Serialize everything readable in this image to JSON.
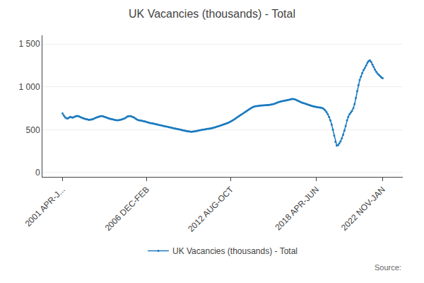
{
  "chart_data": {
    "type": "line",
    "title": "UK Vacancies (thousands) - Total",
    "annotations": [
      "Source:"
    ],
    "categories": [
      "2001 APR-J...",
      null,
      null,
      null,
      null,
      null,
      null,
      null,
      null,
      null,
      null,
      null,
      null,
      null,
      null,
      null,
      null,
      null,
      null,
      null,
      null,
      null,
      null,
      null,
      null,
      null,
      null,
      null,
      null,
      null,
      null,
      null,
      null,
      null,
      null,
      null,
      null,
      null,
      null,
      null,
      null,
      null,
      null,
      null,
      null,
      null,
      null,
      null,
      null,
      null,
      null,
      null,
      null,
      null,
      null,
      null,
      null,
      null,
      null,
      null,
      null,
      null,
      null,
      null,
      null,
      null,
      "2006 DEC-FEB",
      null,
      null,
      null,
      null,
      null,
      null,
      null,
      null,
      null,
      null,
      null,
      null,
      null,
      null,
      null,
      null,
      null,
      null,
      null,
      null,
      null,
      null,
      null,
      null,
      null,
      null,
      null,
      null,
      null,
      null,
      null,
      null,
      null,
      null,
      null,
      null,
      null,
      null,
      null,
      null,
      null,
      null,
      null,
      null,
      null,
      null,
      null,
      null,
      null,
      null,
      null,
      null,
      null,
      null,
      null,
      null,
      null,
      null,
      null,
      null,
      null,
      null,
      null,
      null,
      null,
      "2012 AUG-OCT",
      null,
      null,
      null,
      null,
      null,
      null,
      null,
      null,
      null,
      null,
      null,
      null,
      null,
      null,
      null,
      null,
      null,
      null,
      null,
      null,
      null,
      null,
      null,
      null,
      null,
      null,
      null,
      null,
      null,
      null,
      null,
      null,
      null,
      null,
      null,
      null,
      null,
      null,
      null,
      null,
      null,
      null,
      null,
      null,
      null,
      null,
      null,
      null,
      null,
      null,
      null,
      null,
      null,
      null,
      null,
      null,
      null,
      null,
      null,
      null,
      null,
      null,
      null,
      null,
      null,
      null,
      "2018 APR-JUN",
      null,
      null,
      null,
      null,
      null,
      null,
      null,
      null,
      null,
      null,
      null,
      null,
      null,
      null,
      null,
      null,
      null,
      null,
      null,
      null,
      null,
      null,
      null,
      null,
      null,
      null,
      null,
      null,
      null,
      null,
      null,
      null,
      null,
      null,
      null,
      null,
      null,
      null,
      null,
      null,
      null,
      null,
      null,
      null,
      null,
      null,
      null,
      null,
      null,
      null,
      null,
      "2022 NOV-JAN"
    ],
    "series": [
      {
        "name": "UK Vacancies (thousands) - Total",
        "color": "#1a7abf",
        "marker": "circle",
        "values": [
          690,
          665,
          645,
          635,
          630,
          640,
          650,
          645,
          640,
          650,
          655,
          660,
          660,
          655,
          648,
          640,
          635,
          630,
          625,
          622,
          618,
          615,
          618,
          620,
          625,
          632,
          638,
          645,
          650,
          655,
          658,
          660,
          655,
          650,
          645,
          638,
          632,
          628,
          625,
          622,
          618,
          615,
          612,
          610,
          612,
          615,
          618,
          622,
          628,
          635,
          645,
          655,
          658,
          660,
          655,
          650,
          642,
          632,
          622,
          615,
          610,
          608,
          605,
          602,
          598,
          595,
          590,
          585,
          582,
          578,
          575,
          572,
          568,
          565,
          562,
          558,
          555,
          552,
          548,
          545,
          542,
          538,
          535,
          532,
          528,
          525,
          522,
          518,
          515,
          512,
          508,
          505,
          502,
          498,
          495,
          492,
          488,
          485,
          482,
          480,
          478,
          476,
          478,
          480,
          482,
          485,
          488,
          492,
          495,
          498,
          500,
          502,
          505,
          508,
          510,
          512,
          515,
          518,
          522,
          526,
          530,
          535,
          540,
          545,
          550,
          555,
          560,
          565,
          570,
          575,
          582,
          590,
          598,
          605,
          615,
          625,
          635,
          645,
          655,
          665,
          675,
          685,
          695,
          705,
          715,
          725,
          735,
          745,
          755,
          762,
          768,
          772,
          775,
          778,
          780,
          782,
          783,
          784,
          785,
          786,
          787,
          788,
          790,
          792,
          795,
          798,
          802,
          808,
          815,
          820,
          825,
          828,
          832,
          835,
          838,
          842,
          845,
          848,
          852,
          856,
          860,
          858,
          855,
          850,
          842,
          835,
          828,
          820,
          815,
          810,
          805,
          800,
          795,
          790,
          785,
          780,
          775,
          770,
          768,
          765,
          762,
          760,
          758,
          756,
          750,
          740,
          725,
          705,
          680,
          650,
          610,
          560,
          500,
          430,
          360,
          315,
          320,
          340,
          365,
          400,
          440,
          490,
          545,
          610,
          650,
          680,
          700,
          720,
          750,
          800,
          870,
          950,
          1020,
          1080,
          1120,
          1160,
          1195,
          1220,
          1250,
          1280,
          1300,
          1310,
          1290,
          1260,
          1230,
          1200,
          1175,
          1155,
          1140,
          1125,
          1110,
          1100
        ]
      }
    ],
    "ylim": [
      -50,
      1600
    ],
    "yticks": [
      0,
      500,
      {
        "value": 1000,
        "label": "1 000"
      },
      {
        "value": 1500,
        "label": "1 500"
      }
    ],
    "grid": true,
    "legend": "bottom"
  }
}
